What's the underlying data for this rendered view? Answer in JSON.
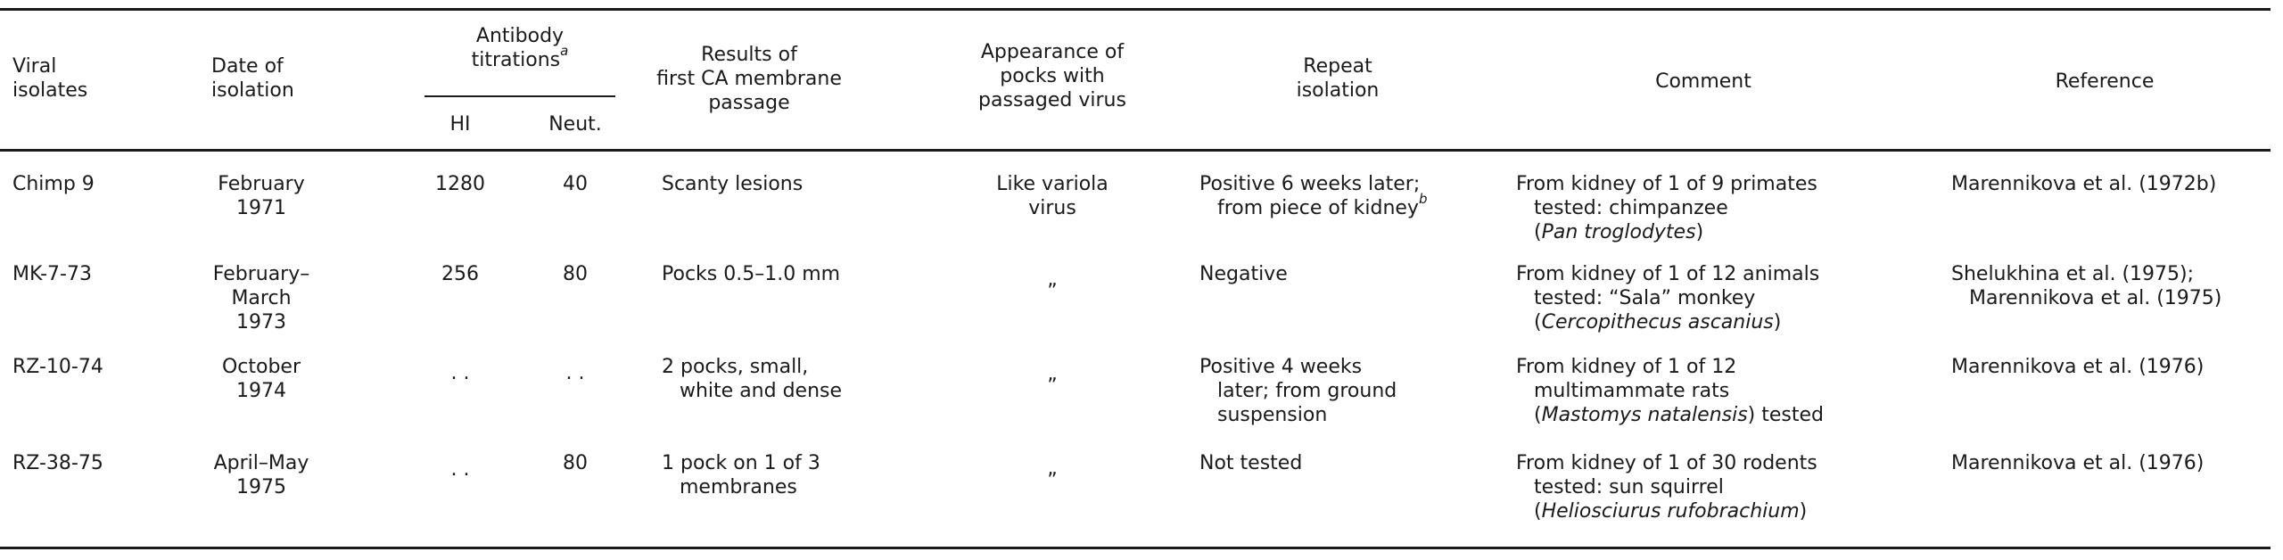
{
  "headers": {
    "viral_isolates": [
      "Viral",
      "isolates"
    ],
    "date": [
      "Date of",
      "isolation"
    ],
    "antibody": [
      "Antibody",
      "titrations"
    ],
    "antibody_sup": "a",
    "hi": "HI",
    "neut": "Neut.",
    "results": [
      "Results of",
      "first CA membrane",
      "passage"
    ],
    "pocks": [
      "Appearance of",
      "pocks with",
      "passaged virus"
    ],
    "repeat": [
      "Repeat",
      "isolation"
    ],
    "comment": "Comment",
    "reference": "Reference"
  },
  "rows": [
    {
      "isolate": "Chimp 9",
      "date": [
        "February",
        "1971"
      ],
      "hi": "1280",
      "neut": "40",
      "result": [
        "Scanty lesions"
      ],
      "pocks": [
        "Like variola",
        "virus"
      ],
      "repeat": [
        "Positive 6 weeks later;",
        "from piece of kidney"
      ],
      "repeat_sup": "b",
      "comment": [
        "From kidney of 1 of 9 primates",
        "tested: chimpanzee",
        "Pan troglodytes"
      ],
      "reference": [
        "Marennikova et al. (1972b)"
      ]
    },
    {
      "isolate": "MK-7-73",
      "date": [
        "February–",
        "March",
        "1973"
      ],
      "hi": "256",
      "neut": "80",
      "result": [
        "Pocks 0.5–1.0 mm"
      ],
      "pocks": [
        "„"
      ],
      "repeat": [
        "Negative"
      ],
      "comment": [
        "From kidney of 1 of 12 animals",
        "tested: “Sala” monkey",
        "Cercopithecus ascanius"
      ],
      "reference": [
        "Shelukhina et al. (1975);",
        "Marennikova et al. (1975)"
      ]
    },
    {
      "isolate": "RZ-10-74",
      "date": [
        "October",
        "1974"
      ],
      "hi": ". .",
      "neut": ". .",
      "result": [
        "2 pocks, small,",
        "white and dense"
      ],
      "pocks": [
        "„"
      ],
      "repeat": [
        "Positive 4 weeks",
        "later; from ground",
        "suspension"
      ],
      "comment": [
        "From kidney of 1 of 12",
        "multimammate rats",
        "Mastomys natalensis",
        ") tested"
      ],
      "reference": [
        "Marennikova et al. (1976)"
      ]
    },
    {
      "isolate": "RZ-38-75",
      "date": [
        "April–May",
        "1975"
      ],
      "hi": ". .",
      "neut": "80",
      "result": [
        "1 pock on 1 of 3",
        "membranes"
      ],
      "pocks": [
        "„"
      ],
      "repeat": [
        "Not tested"
      ],
      "comment": [
        "From kidney of 1 of 30 rodents",
        "tested: sun squirrel",
        "Heliosciurus rufobrachium"
      ],
      "reference": [
        "Marennikova et al. (1976)"
      ]
    }
  ]
}
